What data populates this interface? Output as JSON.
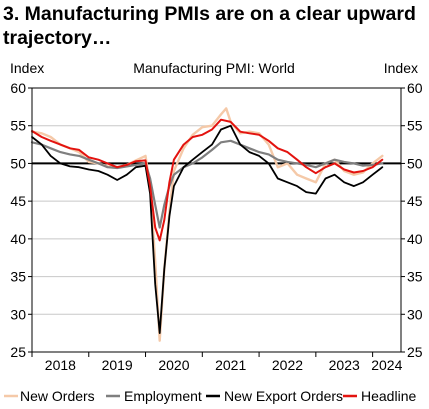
{
  "chart_data": {
    "type": "line",
    "title": "3. Manufacturing PMIs are on a clear upward trajectory…",
    "subtitle": "Manufacturing PMI: World",
    "left_axis_label": "Index",
    "right_axis_label": "Index",
    "ylim": [
      25,
      60
    ],
    "yticks": [
      25,
      30,
      35,
      40,
      45,
      50,
      55,
      60
    ],
    "ytick_labels": [
      "25",
      "30",
      "35",
      "40",
      "45",
      "50",
      "55",
      "60"
    ],
    "xlim": [
      2018.0,
      2024.5
    ],
    "year_labels": [
      {
        "label": "2018",
        "x": 2018.5
      },
      {
        "label": "2019",
        "x": 2019.5
      },
      {
        "label": "2020",
        "x": 2020.5
      },
      {
        "label": "2021",
        "x": 2021.5
      },
      {
        "label": "2022",
        "x": 2022.5
      },
      {
        "label": "2023",
        "x": 2023.5
      },
      {
        "label": "2024",
        "x": 2024.25
      }
    ],
    "reference_line": 50,
    "grid": "horizontal",
    "legend_position": "bottom",
    "series": [
      {
        "name": "New Orders",
        "color": "#f5c9a8",
        "x": [
          2018.0,
          2018.17,
          2018.33,
          2018.5,
          2018.67,
          2018.83,
          2019.0,
          2019.17,
          2019.33,
          2019.5,
          2019.67,
          2019.83,
          2020.0,
          2020.08,
          2020.17,
          2020.25,
          2020.33,
          2020.42,
          2020.5,
          2020.67,
          2020.83,
          2021.0,
          2021.17,
          2021.33,
          2021.42,
          2021.5,
          2021.67,
          2021.83,
          2022.0,
          2022.17,
          2022.33,
          2022.5,
          2022.67,
          2022.83,
          2023.0,
          2023.17,
          2023.33,
          2023.5,
          2023.67,
          2023.83,
          2024.0,
          2024.17
        ],
        "y": [
          54.2,
          54.0,
          53.5,
          52.5,
          52.0,
          51.5,
          50.2,
          50.0,
          49.6,
          49.5,
          49.8,
          50.4,
          51.0,
          47.0,
          37.0,
          26.5,
          36.0,
          43.5,
          49.0,
          52.0,
          53.8,
          54.8,
          55.0,
          56.5,
          57.3,
          55.5,
          54.0,
          54.2,
          54.0,
          52.5,
          49.5,
          50.0,
          48.5,
          48.0,
          47.5,
          50.0,
          50.5,
          49.0,
          48.5,
          48.8,
          50.0,
          51.0
        ]
      },
      {
        "name": "Employment",
        "color": "#7f7f7f",
        "x": [
          2018.0,
          2018.17,
          2018.33,
          2018.5,
          2018.67,
          2018.83,
          2019.0,
          2019.17,
          2019.33,
          2019.5,
          2019.67,
          2019.83,
          2020.0,
          2020.08,
          2020.17,
          2020.25,
          2020.33,
          2020.42,
          2020.5,
          2020.67,
          2020.83,
          2021.0,
          2021.17,
          2021.33,
          2021.5,
          2021.67,
          2021.83,
          2022.0,
          2022.17,
          2022.33,
          2022.5,
          2022.67,
          2022.83,
          2023.0,
          2023.17,
          2023.33,
          2023.5,
          2023.67,
          2023.83,
          2024.0,
          2024.17
        ],
        "y": [
          52.8,
          52.5,
          52.0,
          51.5,
          51.2,
          51.0,
          50.5,
          50.0,
          49.5,
          49.4,
          49.6,
          49.8,
          50.0,
          48.0,
          44.5,
          41.5,
          44.5,
          47.0,
          48.5,
          49.5,
          50.0,
          50.8,
          51.8,
          52.8,
          53.0,
          52.5,
          52.0,
          51.5,
          51.2,
          50.5,
          50.2,
          50.0,
          49.8,
          49.5,
          50.0,
          50.5,
          50.2,
          50.0,
          49.7,
          49.8,
          50.0
        ]
      },
      {
        "name": "New Export Orders",
        "color": "#000000",
        "x": [
          2018.0,
          2018.17,
          2018.33,
          2018.5,
          2018.67,
          2018.83,
          2019.0,
          2019.17,
          2019.33,
          2019.5,
          2019.67,
          2019.83,
          2020.0,
          2020.08,
          2020.17,
          2020.25,
          2020.33,
          2020.42,
          2020.5,
          2020.67,
          2020.83,
          2021.0,
          2021.17,
          2021.33,
          2021.5,
          2021.67,
          2021.83,
          2022.0,
          2022.17,
          2022.33,
          2022.5,
          2022.67,
          2022.83,
          2023.0,
          2023.17,
          2023.33,
          2023.5,
          2023.67,
          2023.83,
          2024.0,
          2024.17
        ],
        "y": [
          53.5,
          52.5,
          51.0,
          50.0,
          49.6,
          49.5,
          49.2,
          49.0,
          48.5,
          47.8,
          48.5,
          49.5,
          49.7,
          46.0,
          34.0,
          27.5,
          36.0,
          43.0,
          47.0,
          49.5,
          50.5,
          51.5,
          52.5,
          54.5,
          55.0,
          52.5,
          51.5,
          51.0,
          50.0,
          48.0,
          47.5,
          47.0,
          46.2,
          46.0,
          48.0,
          48.5,
          47.5,
          47.0,
          47.5,
          48.5,
          49.5
        ]
      },
      {
        "name": "Headline",
        "color": "#e3130f",
        "x": [
          2018.0,
          2018.17,
          2018.33,
          2018.5,
          2018.67,
          2018.83,
          2019.0,
          2019.17,
          2019.33,
          2019.5,
          2019.67,
          2019.83,
          2020.0,
          2020.08,
          2020.17,
          2020.25,
          2020.33,
          2020.42,
          2020.5,
          2020.67,
          2020.83,
          2021.0,
          2021.17,
          2021.33,
          2021.5,
          2021.67,
          2021.83,
          2022.0,
          2022.17,
          2022.33,
          2022.5,
          2022.67,
          2022.83,
          2023.0,
          2023.17,
          2023.33,
          2023.5,
          2023.67,
          2023.83,
          2024.0,
          2024.17
        ],
        "y": [
          54.3,
          53.5,
          53.0,
          52.5,
          52.0,
          51.8,
          50.8,
          50.5,
          50.0,
          49.5,
          49.8,
          50.3,
          50.4,
          47.0,
          41.5,
          39.8,
          42.5,
          47.5,
          50.5,
          52.5,
          53.5,
          53.8,
          54.5,
          55.8,
          55.5,
          54.2,
          54.0,
          53.8,
          53.0,
          52.0,
          51.5,
          50.5,
          49.5,
          48.7,
          49.5,
          50.0,
          49.2,
          48.8,
          49.0,
          49.5,
          50.5
        ]
      }
    ]
  }
}
